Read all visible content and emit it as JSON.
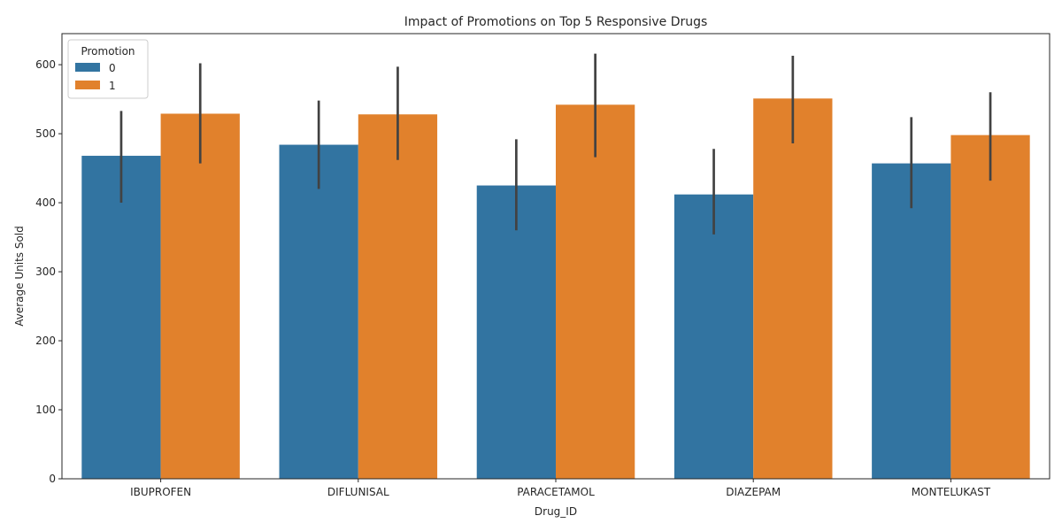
{
  "chart_data": {
    "type": "bar",
    "title": "Impact of Promotions on Top 5 Responsive Drugs",
    "xlabel": "Drug_ID",
    "ylabel": "Average Units Sold",
    "categories": [
      "IBUPROFEN",
      "DIFLUNISAL",
      "PARACETAMOL",
      "DIAZEPAM",
      "MONTELUKAST"
    ],
    "ylim": [
      0,
      645
    ],
    "yticks": [
      0,
      100,
      200,
      300,
      400,
      500,
      600
    ],
    "legend": {
      "title": "Promotion",
      "placement": "top-left"
    },
    "series": [
      {
        "name": "0",
        "color": "#3274a1",
        "values": [
          468,
          484,
          425,
          412,
          457
        ],
        "ci_low": [
          400,
          420,
          360,
          354,
          392
        ],
        "ci_high": [
          533,
          548,
          492,
          478,
          524
        ]
      },
      {
        "name": "1",
        "color": "#e1812c",
        "values": [
          529,
          528,
          542,
          551,
          498
        ],
        "ci_low": [
          457,
          462,
          466,
          486,
          432
        ],
        "ci_high": [
          602,
          597,
          616,
          613,
          560
        ]
      }
    ],
    "errorbar_color": "#424242",
    "grid": false
  }
}
